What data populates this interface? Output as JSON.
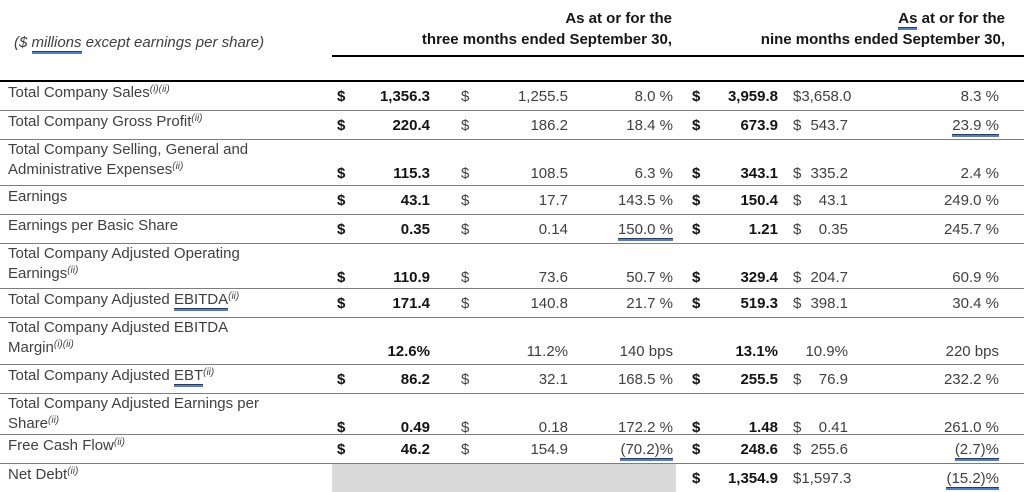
{
  "note": {
    "pre": "($ ",
    "marked": "millions",
    "post": " except earnings per share)"
  },
  "groups": {
    "g1": {
      "line1": "As at or for the",
      "line2": "three months ended September 30,"
    },
    "g2": {
      "line1_marked": "As",
      "line1_rest": " at or for the",
      "line2": "nine months ended September 30,"
    }
  },
  "rows": [
    {
      "label": "Total Company Sales",
      "sup": "(i)(ii)",
      "d1": "$",
      "v1": "1,356.3",
      "d2": "$",
      "v2": "1,255.5",
      "p1": "8.0 %",
      "d3": "$",
      "v3": "3,959.8",
      "d4": "$",
      "v4": "3,658.0",
      "p2": "8.3 %"
    },
    {
      "label": "Total Company Gross Profit",
      "sup": "(ii)",
      "d1": "$",
      "v1": "220.4",
      "d2": "$",
      "v2": "186.2",
      "p1": "18.4 %",
      "d3": "$",
      "v3": "673.9",
      "d4": "$",
      "v4": "543.7",
      "p2": "23.9 %"
    },
    {
      "label": "Total Company Selling, General and\nAdministrative Expenses",
      "sup": "(ii)",
      "d1": "$",
      "v1": "115.3",
      "d2": "$",
      "v2": "108.5",
      "p1": "6.3 %",
      "d3": "$",
      "v3": "343.1",
      "d4": "$",
      "v4": "335.2",
      "p2": "2.4 %"
    },
    {
      "label": "Earnings",
      "sup": "",
      "d1": "$",
      "v1": "43.1",
      "d2": "$",
      "v2": "17.7",
      "p1": "143.5 %",
      "d3": "$",
      "v3": "150.4",
      "d4": "$",
      "v4": "43.1",
      "p2": "249.0 %"
    },
    {
      "label": "Earnings per Basic Share",
      "sup": "",
      "d1": "$",
      "v1": "0.35",
      "d2": "$",
      "v2": "0.14",
      "p1": "150.0 %",
      "d3": "$",
      "v3": "1.21",
      "d4": "$",
      "v4": "0.35",
      "p2": "245.7 %"
    },
    {
      "label": "Total Company Adjusted Operating\nEarnings",
      "sup": "(ii)",
      "d1": "$",
      "v1": "110.9",
      "d2": "$",
      "v2": "73.6",
      "p1": "50.7 %",
      "d3": "$",
      "v3": "329.4",
      "d4": "$",
      "v4": "204.7",
      "p2": "60.9 %"
    },
    {
      "label": "Total Company Adjusted ",
      "label_marked": "EBITDA",
      "sup": "(ii)",
      "d1": "$",
      "v1": "171.4",
      "d2": "$",
      "v2": "140.8",
      "p1": "21.7 %",
      "d3": "$",
      "v3": "519.3",
      "d4": "$",
      "v4": "398.1",
      "p2": "30.4 %"
    },
    {
      "label": "Total Company Adjusted EBITDA\nMargin",
      "sup": "(i)(ii)",
      "d1": "",
      "v1": "12.6%",
      "d2": "",
      "v2": "11.2%",
      "p1": "140 bps",
      "d3": "",
      "v3": "13.1%",
      "d4": "",
      "v4": "10.9%",
      "p2": "220 bps"
    },
    {
      "label": "Total Company Adjusted ",
      "label_marked": "EBT",
      "sup": "(ii)",
      "d1": "$",
      "v1": "86.2",
      "d2": "$",
      "v2": "32.1",
      "p1": "168.5 %",
      "d3": "$",
      "v3": "255.5",
      "d4": "$",
      "v4": "76.9",
      "p2": "232.2 %"
    },
    {
      "label": "Total Company Adjusted Earnings per\nShare",
      "sup": "(ii)",
      "d1": "$",
      "v1": "0.49",
      "d2": "$",
      "v2": "0.18",
      "p1": "172.2 %",
      "d3": "$",
      "v3": "1.48",
      "d4": "$",
      "v4": "0.41",
      "p2": "261.0 %"
    },
    {
      "label": "Free Cash Flow",
      "sup": "(ii)",
      "d1": "$",
      "v1": "46.2",
      "d2": "$",
      "v2": "154.9",
      "p1": "(70.2)%",
      "d3": "$",
      "v3": "248.6",
      "d4": "$",
      "v4": "255.6",
      "p2": "(2.7)%"
    },
    {
      "label": "Net Debt",
      "sup": "(ii)",
      "d3": "$",
      "v3": "1,354.9",
      "d4": "$",
      "v4": "1,597.3",
      "p2": "(15.2)%"
    }
  ],
  "colors": {
    "accent_underline": "#4a7fe0",
    "shaded_cell": "#dadada",
    "rule": "#000000"
  }
}
